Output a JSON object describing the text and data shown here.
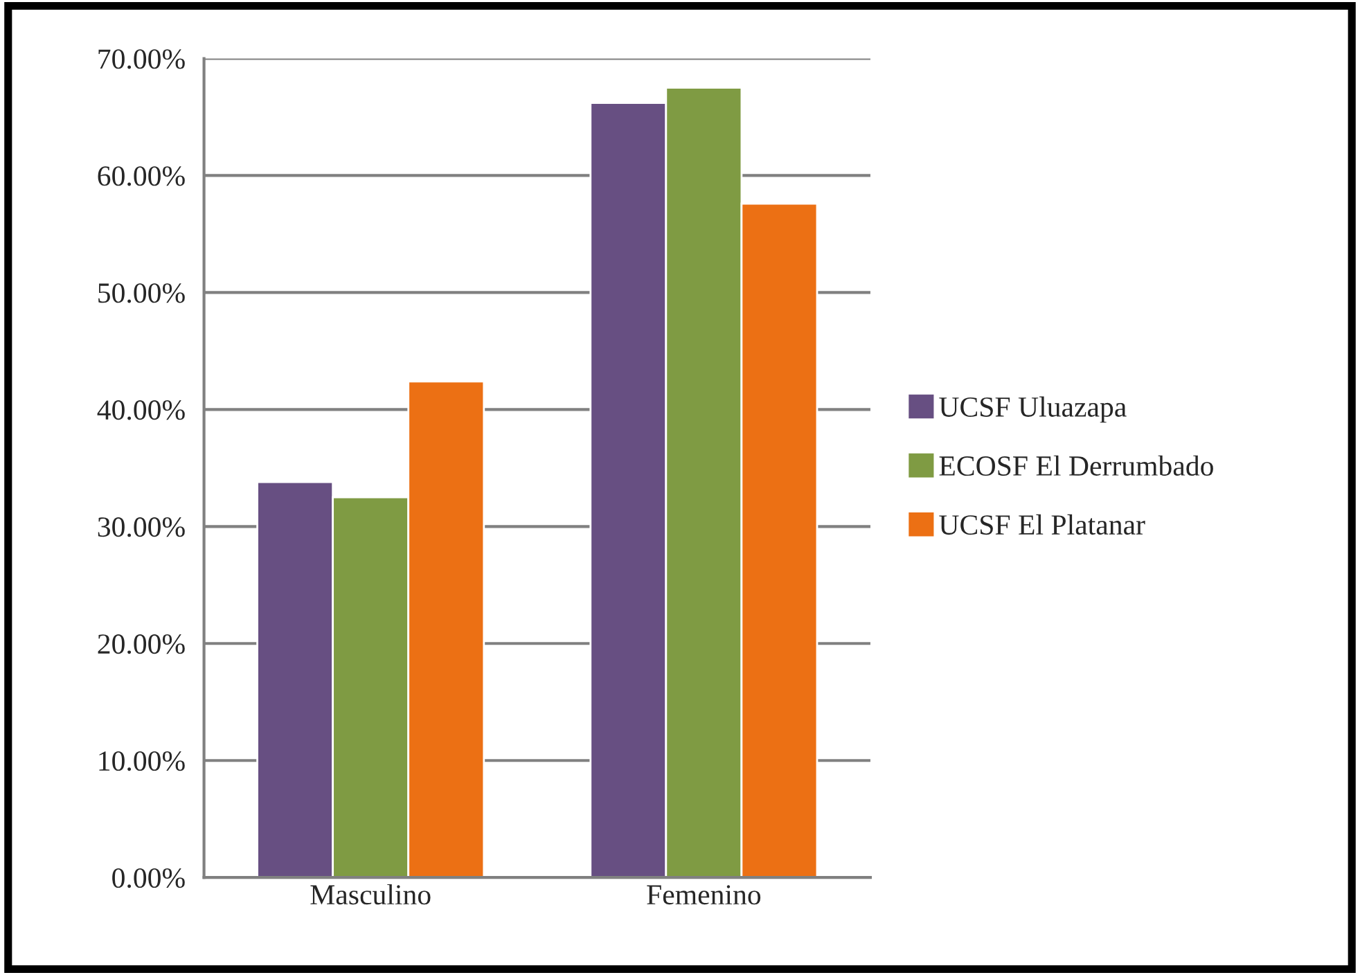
{
  "chart_data": {
    "type": "bar",
    "categories": [
      "Masculino",
      "Femenino"
    ],
    "series": [
      {
        "name": "UCSF Uluazapa",
        "color": "#674f82",
        "values": [
          33.8,
          66.2
        ]
      },
      {
        "name": "ECOSF El Derrumbado",
        "color": "#7f9b43",
        "values": [
          32.5,
          67.5
        ]
      },
      {
        "name": "UCSF El Platanar",
        "color": "#ec7014",
        "values": [
          42.4,
          57.6
        ]
      }
    ],
    "ylim": [
      0,
      70
    ],
    "yticks": [
      {
        "value": 0,
        "label": "0.00%"
      },
      {
        "value": 10,
        "label": "10.00%"
      },
      {
        "value": 20,
        "label": "20.00%"
      },
      {
        "value": 30,
        "label": "30.00%"
      },
      {
        "value": 40,
        "label": "40.00%"
      },
      {
        "value": 50,
        "label": "50.00%"
      },
      {
        "value": 60,
        "label": "60.00%"
      },
      {
        "value": 70,
        "label": "70.00%"
      }
    ],
    "grid": "y",
    "legend": "right"
  }
}
